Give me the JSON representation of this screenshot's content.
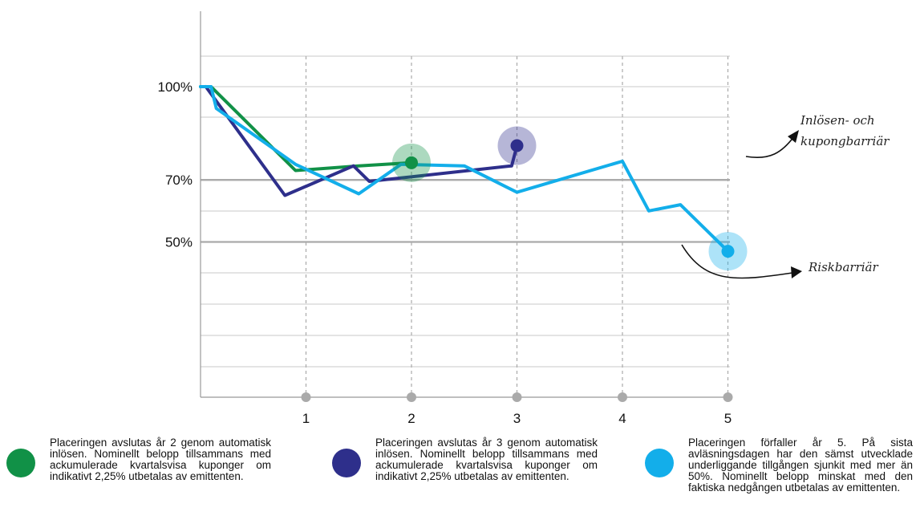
{
  "chart_data": {
    "type": "line",
    "title": "",
    "xlabel": "",
    "ylabel": "",
    "x_ticks": [
      "1",
      "2",
      "3",
      "4",
      "5"
    ],
    "y_ticks": [
      "100%",
      "70%",
      "50%"
    ],
    "series": [
      {
        "color": "#119147",
        "points": [
          [
            0.0,
            100
          ],
          [
            0.1,
            100
          ],
          [
            0.9,
            73
          ],
          [
            1.5,
            74.5
          ],
          [
            2.0,
            75.5
          ]
        ],
        "end_marker": [
          2.0,
          75.5
        ]
      },
      {
        "color": "#2e2f8b",
        "points": [
          [
            0.05,
            100
          ],
          [
            0.8,
            65
          ],
          [
            1.45,
            74.5
          ],
          [
            1.6,
            69.5
          ],
          [
            2.95,
            74.5
          ],
          [
            3.0,
            81
          ]
        ],
        "end_marker": [
          3.0,
          81
        ]
      },
      {
        "color": "#13aeea",
        "points": [
          [
            0.0,
            100
          ],
          [
            0.1,
            100
          ],
          [
            0.15,
            93
          ],
          [
            0.9,
            75
          ],
          [
            1.5,
            65.5
          ],
          [
            1.9,
            75
          ],
          [
            2.5,
            74.5
          ],
          [
            3.0,
            66
          ],
          [
            4.0,
            76
          ],
          [
            4.25,
            60
          ],
          [
            4.55,
            62
          ],
          [
            5.0,
            47
          ]
        ],
        "end_marker": [
          5.0,
          47
        ]
      }
    ],
    "annotations": [
      "Inlösen- och",
      "kupongbarriär",
      "Riskbarriär"
    ]
  },
  "legend": [
    {
      "color": "#119147",
      "text": "Placeringen avslutas år 2 genom automatisk inlösen. Nominellt belopp tillsammans med ackumulerade kvartalsvisa kuponger om indikativt 2,25% utbetalas av emittenten."
    },
    {
      "color": "#2e2f8b",
      "text": "Placeringen avslutas år 3 genom automatisk inlösen. Nominellt belopp tillsammans med ackumulerade kvartalsvisa kuponger om indikativt 2,25% utbetalas av emittenten."
    },
    {
      "color": "#13aeea",
      "text": "Placeringen förfaller år 5. På sista avläsningsdagen har den sämst utvecklade underliggande tillgången sjunkit med mer än 50%. Nominellt belopp minskat med den faktiska nedgången utbetalas av emittenten."
    }
  ]
}
